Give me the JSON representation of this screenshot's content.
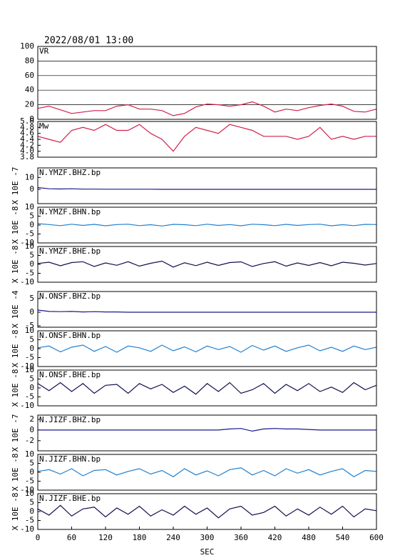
{
  "chart_data": [
    {
      "type": "line",
      "title": "2022/08/01 13:00",
      "xlim": [
        0,
        600
      ],
      "ylim": [
        0,
        100
      ],
      "yticks": [
        0,
        20,
        40,
        60,
        80,
        100
      ],
      "grid": true,
      "x": [
        0,
        20,
        40,
        60,
        80,
        100,
        120,
        140,
        160,
        180,
        200,
        220,
        240,
        260,
        280,
        300,
        320,
        340,
        360,
        380,
        400,
        420,
        440,
        460,
        480,
        500,
        520,
        540,
        560,
        580,
        600
      ],
      "series": [
        {
          "name": "VR",
          "color": "#d0204a",
          "values": [
            15,
            18,
            13,
            8,
            10,
            12,
            12,
            18,
            20,
            14,
            14,
            12,
            5,
            8,
            17,
            21,
            20,
            18,
            20,
            24,
            18,
            10,
            14,
            12,
            16,
            19,
            21,
            18,
            11,
            10,
            14
          ]
        }
      ]
    },
    {
      "type": "line",
      "xlim": [
        0,
        600
      ],
      "ylim": [
        3.8,
        5
      ],
      "yticks": [
        3.8,
        {
          "value": 4,
          "label": "4.0"
        },
        4.2,
        4.4,
        4.6,
        4.8,
        {
          "value": 5,
          "label": "5.0"
        }
      ],
      "grid": false,
      "x": [
        0,
        20,
        40,
        60,
        80,
        100,
        120,
        140,
        160,
        180,
        200,
        220,
        240,
        260,
        280,
        300,
        320,
        340,
        360,
        380,
        400,
        420,
        440,
        460,
        480,
        500,
        520,
        540,
        560,
        580,
        600
      ],
      "series": [
        {
          "name": "Mw",
          "color": "#d0204a",
          "values": [
            4.5,
            4.4,
            4.3,
            4.7,
            4.8,
            4.7,
            4.9,
            4.7,
            4.7,
            4.9,
            4.6,
            4.4,
            4.0,
            4.5,
            4.8,
            4.7,
            4.6,
            4.9,
            4.8,
            4.7,
            4.5,
            4.5,
            4.5,
            4.4,
            4.5,
            4.8,
            4.4,
            4.5,
            4.4,
            4.5,
            4.5
          ]
        }
      ]
    },
    {
      "type": "line",
      "ylabel": "X 10E -7",
      "xlim": [
        0,
        600
      ],
      "ylim": [
        -12,
        18
      ],
      "yticks": [
        0,
        10
      ],
      "grid": false,
      "x": [
        0,
        20,
        40,
        60,
        80,
        100,
        120,
        140,
        160,
        180,
        200,
        220,
        240,
        260,
        280,
        300,
        320,
        340,
        360,
        380,
        400,
        420,
        440,
        460,
        480,
        500,
        520,
        540,
        560,
        580,
        600
      ],
      "series": [
        {
          "name": "N.YMZF.BHZ.bp",
          "color": "#1a1a8c",
          "values": [
            1.5,
            0.5,
            0.3,
            0.5,
            0.2,
            0.2,
            0.1,
            0.1,
            0.1,
            0.1,
            0.1,
            0,
            0,
            0,
            0,
            0,
            0,
            0,
            0,
            0,
            0,
            0,
            0,
            0,
            0,
            0,
            0,
            0,
            0,
            0,
            0
          ]
        }
      ]
    },
    {
      "type": "line",
      "ylabel": "X 10E -8",
      "xlim": [
        0,
        600
      ],
      "ylim": [
        -10,
        10
      ],
      "yticks": [
        -10,
        -5,
        0,
        5,
        10
      ],
      "grid": false,
      "x": [
        0,
        20,
        40,
        60,
        80,
        100,
        120,
        140,
        160,
        180,
        200,
        220,
        240,
        260,
        280,
        300,
        320,
        340,
        360,
        380,
        400,
        420,
        440,
        460,
        480,
        500,
        520,
        540,
        560,
        580,
        600
      ],
      "series": [
        {
          "name": "N.YMZF.BHN.bp",
          "color": "#2080d0",
          "values": [
            0.8,
            0.3,
            -0.3,
            0.5,
            -0.2,
            0.4,
            -0.4,
            0.3,
            0.5,
            -0.3,
            0.2,
            -0.5,
            0.4,
            0.2,
            -0.3,
            0.5,
            -0.2,
            0.3,
            -0.4,
            0.5,
            0.2,
            -0.3,
            0.4,
            -0.2,
            0.3,
            0.5,
            -0.4,
            0.2,
            -0.3,
            0.4,
            0.3
          ]
        }
      ]
    },
    {
      "type": "line",
      "ylabel": "X 10E -8",
      "xlim": [
        0,
        600
      ],
      "ylim": [
        -10,
        10
      ],
      "yticks": [
        -10,
        -5,
        0,
        5,
        10
      ],
      "grid": false,
      "x": [
        0,
        20,
        40,
        60,
        80,
        100,
        120,
        140,
        160,
        180,
        200,
        220,
        240,
        260,
        280,
        300,
        320,
        340,
        360,
        380,
        400,
        420,
        440,
        460,
        480,
        500,
        520,
        540,
        560,
        580,
        600
      ],
      "series": [
        {
          "name": "N.YMZF.BHE.bp",
          "color": "#101050",
          "values": [
            0.5,
            1.2,
            -0.8,
            1.0,
            1.5,
            -1.2,
            0.8,
            -0.5,
            1.5,
            -1.0,
            0.6,
            1.8,
            -1.5,
            0.9,
            -0.7,
            1.2,
            -0.6,
            1.0,
            1.4,
            -1.2,
            0.5,
            1.5,
            -1.0,
            0.8,
            -0.6,
            1.0,
            -0.8,
            1.2,
            0.6,
            -0.4,
            0.5
          ]
        }
      ]
    },
    {
      "type": "line",
      "ylabel": "X 10E -4",
      "xlim": [
        0,
        600
      ],
      "ylim": [
        -5.5,
        7.6
      ],
      "yticks": [
        -5,
        0,
        5
      ],
      "grid": false,
      "x": [
        0,
        20,
        40,
        60,
        80,
        100,
        120,
        140,
        160,
        180,
        200,
        220,
        240,
        260,
        280,
        300,
        320,
        340,
        360,
        380,
        400,
        420,
        440,
        460,
        480,
        500,
        520,
        540,
        560,
        580,
        600
      ],
      "series": [
        {
          "name": "N.ONSF.BHZ.bp",
          "color": "#1a1a8c",
          "values": [
            0.8,
            0.3,
            0.2,
            0.3,
            0.1,
            0.2,
            0.1,
            0.1,
            0,
            0,
            0,
            0,
            0,
            0,
            0,
            0,
            0,
            0,
            0,
            0,
            0,
            0,
            0,
            0,
            0,
            0,
            0,
            0,
            0,
            0,
            0
          ]
        }
      ]
    },
    {
      "type": "line",
      "ylabel": "X 10E -8",
      "xlim": [
        0,
        600
      ],
      "ylim": [
        -10,
        10
      ],
      "yticks": [
        -10,
        -5,
        0,
        5,
        10
      ],
      "grid": false,
      "x": [
        0,
        20,
        40,
        60,
        80,
        100,
        120,
        140,
        160,
        180,
        200,
        220,
        240,
        260,
        280,
        300,
        320,
        340,
        360,
        380,
        400,
        420,
        440,
        460,
        480,
        500,
        520,
        540,
        560,
        580,
        600
      ],
      "series": [
        {
          "name": "N.ONSF.BHN.bp",
          "color": "#2080d0",
          "values": [
            0.5,
            1.5,
            -1.8,
            0.8,
            2.0,
            -1.5,
            1.2,
            -2.0,
            1.5,
            0.5,
            -1.5,
            2.0,
            -1.2,
            1.0,
            -1.8,
            1.5,
            -0.5,
            1.2,
            -2.0,
            1.8,
            -0.8,
            1.5,
            -1.5,
            0.5,
            2.0,
            -1.2,
            0.8,
            -1.5,
            1.5,
            -0.5,
            0.8
          ]
        }
      ]
    },
    {
      "type": "line",
      "ylabel": "X 10E -8",
      "xlim": [
        0,
        600
      ],
      "ylim": [
        -10,
        10
      ],
      "yticks": [
        -10,
        -5,
        0,
        5,
        10
      ],
      "grid": false,
      "x": [
        0,
        20,
        40,
        60,
        80,
        100,
        120,
        140,
        160,
        180,
        200,
        220,
        240,
        260,
        280,
        300,
        320,
        340,
        360,
        380,
        400,
        420,
        440,
        460,
        480,
        500,
        520,
        540,
        560,
        580,
        600
      ],
      "series": [
        {
          "name": "N.ONSF.BHE.bp",
          "color": "#101050",
          "values": [
            2.5,
            -1.5,
            3.0,
            -2.0,
            2.5,
            -3.0,
            1.5,
            2.0,
            -3.0,
            2.5,
            -0.5,
            2.0,
            -2.5,
            1.0,
            -3.5,
            2.5,
            -2.0,
            3.0,
            -3.0,
            -1.0,
            2.5,
            -3.0,
            2.0,
            -1.5,
            2.5,
            -2.0,
            0.5,
            -2.5,
            3.0,
            -1.0,
            1.5
          ]
        }
      ]
    },
    {
      "type": "line",
      "ylabel": "X 10E -7",
      "xlim": [
        0,
        600
      ],
      "ylim": [
        -3.9,
        2.8
      ],
      "yticks": [
        -2,
        0,
        2
      ],
      "grid": false,
      "x": [
        0,
        20,
        40,
        60,
        80,
        100,
        120,
        140,
        160,
        180,
        200,
        220,
        240,
        260,
        280,
        300,
        320,
        340,
        360,
        380,
        400,
        420,
        440,
        460,
        480,
        500,
        520,
        540,
        560,
        580,
        600
      ],
      "series": [
        {
          "name": "N.JIZF.BHZ.bp",
          "color": "#1a1a8c",
          "values": [
            0,
            0,
            0,
            0,
            0,
            0,
            0,
            0,
            0,
            0,
            0,
            0,
            0,
            0,
            0,
            0,
            0,
            0.2,
            0.3,
            -0.2,
            0.2,
            0.3,
            0.2,
            0.2,
            0.1,
            0,
            0,
            0,
            0,
            0,
            0
          ]
        }
      ]
    },
    {
      "type": "line",
      "ylabel": "X 10E -8",
      "xlim": [
        0,
        600
      ],
      "ylim": [
        -10,
        10
      ],
      "yticks": [
        -10,
        -5,
        0,
        5,
        10
      ],
      "grid": false,
      "x": [
        0,
        20,
        40,
        60,
        80,
        100,
        120,
        140,
        160,
        180,
        200,
        220,
        240,
        260,
        280,
        300,
        320,
        340,
        360,
        380,
        400,
        420,
        440,
        460,
        480,
        500,
        520,
        540,
        560,
        580,
        600
      ],
      "series": [
        {
          "name": "N.JIZF.BHN.bp",
          "color": "#2080d0",
          "values": [
            0.5,
            1.5,
            -1.0,
            2.0,
            -2.0,
            1.0,
            1.5,
            -1.5,
            0.5,
            2.0,
            -1.0,
            1.0,
            -2.5,
            2.0,
            -1.5,
            0.8,
            -2.0,
            1.5,
            2.5,
            -1.5,
            1.0,
            -2.0,
            2.0,
            -0.5,
            1.5,
            -1.5,
            0.5,
            2.0,
            -2.5,
            1.0,
            0.5
          ]
        }
      ]
    },
    {
      "type": "line",
      "ylabel": "X 10E -8",
      "xlabel": "SEC",
      "xlim": [
        0,
        600
      ],
      "xticks": [
        0,
        60,
        120,
        180,
        240,
        300,
        360,
        420,
        480,
        540,
        600
      ],
      "ylim": [
        -10,
        10
      ],
      "yticks": [
        -10,
        -5,
        0,
        5,
        10
      ],
      "grid": false,
      "x": [
        0,
        20,
        40,
        60,
        80,
        100,
        120,
        140,
        160,
        180,
        200,
        220,
        240,
        260,
        280,
        300,
        320,
        340,
        360,
        380,
        400,
        420,
        440,
        460,
        480,
        500,
        520,
        540,
        560,
        580,
        600
      ],
      "series": [
        {
          "name": "N.JIZF.BHE.bp",
          "color": "#101050",
          "values": [
            1.5,
            -2.0,
            3.5,
            -2.5,
            1.5,
            2.5,
            -3.0,
            2.0,
            -1.5,
            3.0,
            -2.5,
            1.0,
            -2.0,
            3.0,
            -1.5,
            2.0,
            -3.5,
            1.5,
            3.0,
            -2.0,
            -0.5,
            3.0,
            -2.5,
            1.5,
            -2.0,
            2.5,
            -1.5,
            3.0,
            -3.0,
            1.5,
            0.5
          ]
        }
      ]
    }
  ]
}
